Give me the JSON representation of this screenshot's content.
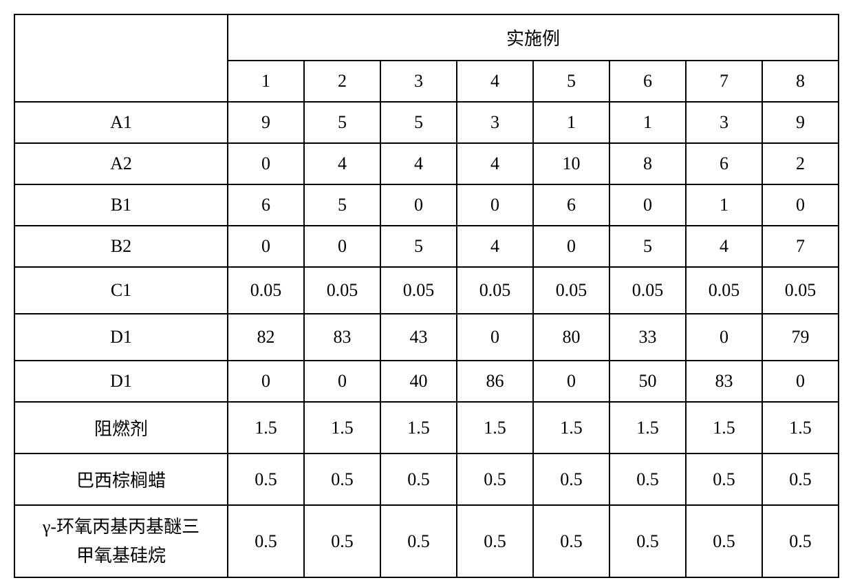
{
  "table": {
    "header_title": "实施例",
    "column_numbers": [
      "1",
      "2",
      "3",
      "4",
      "5",
      "6",
      "7",
      "8"
    ],
    "rows": [
      {
        "label": "A1",
        "values": [
          "9",
          "5",
          "5",
          "3",
          "1",
          "1",
          "3",
          "9"
        ],
        "tall": false
      },
      {
        "label": "A2",
        "values": [
          "0",
          "4",
          "4",
          "4",
          "10",
          "8",
          "6",
          "2"
        ],
        "tall": false
      },
      {
        "label": "B1",
        "values": [
          "6",
          "5",
          "0",
          "0",
          "6",
          "0",
          "1",
          "0"
        ],
        "tall": false
      },
      {
        "label": "B2",
        "values": [
          "0",
          "0",
          "5",
          "4",
          "0",
          "5",
          "4",
          "7"
        ],
        "tall": false
      },
      {
        "label": "C1",
        "values": [
          "0.05",
          "0.05",
          "0.05",
          "0.05",
          "0.05",
          "0.05",
          "0.05",
          "0.05"
        ],
        "tall": true
      },
      {
        "label": "D1",
        "values": [
          "82",
          "83",
          "43",
          "0",
          "80",
          "33",
          "0",
          "79"
        ],
        "tall": true
      },
      {
        "label": "D1",
        "values": [
          "0",
          "0",
          "40",
          "86",
          "0",
          "50",
          "83",
          "0"
        ],
        "tall": false
      },
      {
        "label": "阻燃剂",
        "values": [
          "1.5",
          "1.5",
          "1.5",
          "1.5",
          "1.5",
          "1.5",
          "1.5",
          "1.5"
        ],
        "tall": true
      },
      {
        "label": "巴西棕榈蜡",
        "values": [
          "0.5",
          "0.5",
          "0.5",
          "0.5",
          "0.5",
          "0.5",
          "0.5",
          "0.5"
        ],
        "tall": true
      },
      {
        "label": "γ-环氧丙基丙基醚三\n甲氧基硅烷",
        "values": [
          "0.5",
          "0.5",
          "0.5",
          "0.5",
          "0.5",
          "0.5",
          "0.5",
          "0.5"
        ],
        "tall": false,
        "multiline": true
      }
    ],
    "styles": {
      "border_color": "#000000",
      "background_color": "#ffffff",
      "text_color": "#000000",
      "font_size": 26,
      "border_width": 2.5,
      "row_label_width": 310,
      "num_col_width": 111
    }
  }
}
